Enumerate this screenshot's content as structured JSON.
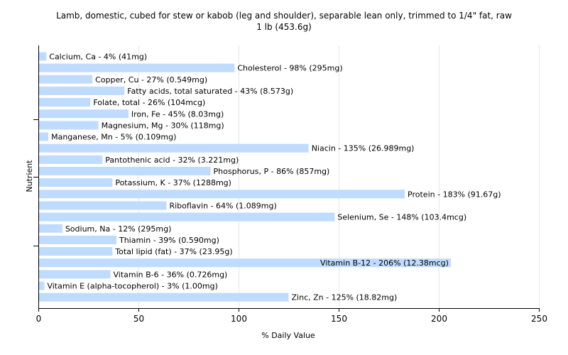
{
  "chart_data": {
    "type": "bar",
    "orientation": "horizontal",
    "title": "Lamb, domestic, cubed for stew or kabob (leg and shoulder), separable lean only, trimmed to 1/4\" fat, raw",
    "subtitle": "1 lb (453.6g)",
    "xlabel": "% Daily Value",
    "ylabel": "Nutrient",
    "xlim": [
      0,
      250
    ],
    "xticks": [
      0,
      50,
      100,
      150,
      200,
      250
    ],
    "grid": true,
    "bar_color": "#bfdbff",
    "categories": [
      "Calcium, Ca",
      "Cholesterol",
      "Copper, Cu",
      "Fatty acids, total saturated",
      "Folate, total",
      "Iron, Fe",
      "Magnesium, Mg",
      "Manganese, Mn",
      "Niacin",
      "Pantothenic acid",
      "Phosphorus, P",
      "Potassium, K",
      "Protein",
      "Riboflavin",
      "Selenium, Se",
      "Sodium, Na",
      "Thiamin",
      "Total lipid (fat)",
      "Vitamin B-12",
      "Vitamin B-6",
      "Vitamin E (alpha-tocopherol)",
      "Zinc, Zn"
    ],
    "values": [
      4,
      98,
      27,
      43,
      26,
      45,
      30,
      5,
      135,
      32,
      86,
      37,
      183,
      64,
      148,
      12,
      39,
      37,
      206,
      36,
      3,
      125
    ],
    "labels": [
      "Calcium, Ca - 4% (41mg)",
      "Cholesterol - 98% (295mg)",
      "Copper, Cu - 27% (0.549mg)",
      "Fatty acids, total saturated - 43% (8.573g)",
      "Folate, total - 26% (104mcg)",
      "Iron, Fe - 45% (8.03mg)",
      "Magnesium, Mg - 30% (118mg)",
      "Manganese, Mn - 5% (0.109mg)",
      "Niacin - 135% (26.989mg)",
      "Pantothenic acid - 32% (3.221mg)",
      "Phosphorus, P - 86% (857mg)",
      "Potassium, K - 37% (1288mg)",
      "Protein - 183% (91.67g)",
      "Riboflavin - 64% (1.089mg)",
      "Selenium, Se - 148% (103.4mcg)",
      "Sodium, Na - 12% (295mg)",
      "Thiamin - 39% (0.590mg)",
      "Total lipid (fat) - 37% (23.95g)",
      "Vitamin B-12 - 206% (12.38mcg)",
      "Vitamin B-6 - 36% (0.726mg)",
      "Vitamin E (alpha-tocopherol) - 3% (1.00mg)",
      "Zinc, Zn - 125% (18.82mg)"
    ]
  }
}
